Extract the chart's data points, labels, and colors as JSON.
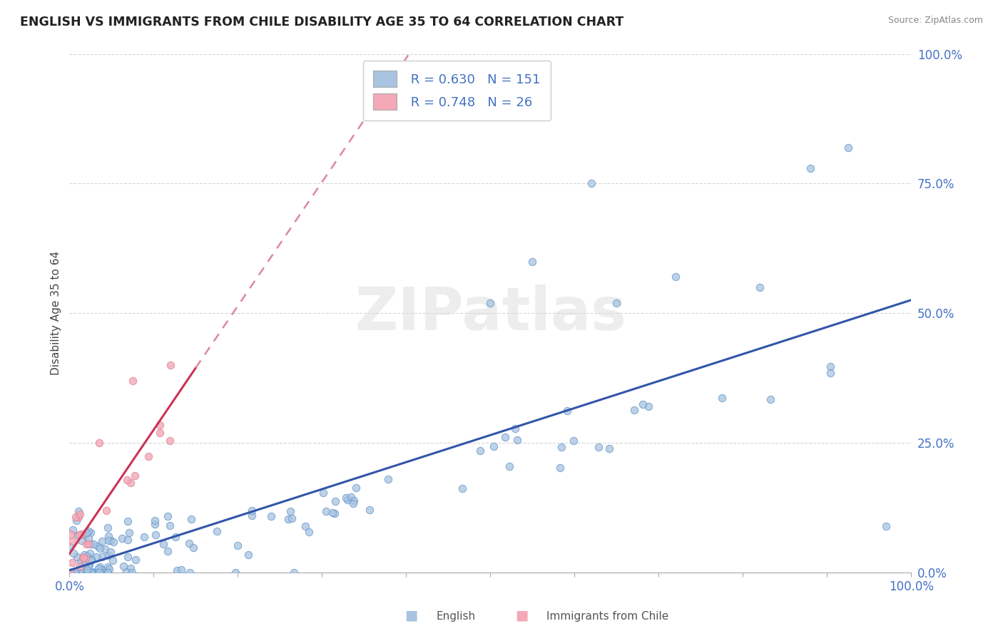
{
  "title": "ENGLISH VS IMMIGRANTS FROM CHILE DISABILITY AGE 35 TO 64 CORRELATION CHART",
  "source": "Source: ZipAtlas.com",
  "ylabel": "Disability Age 35 to 64",
  "ytick_labels": [
    "0.0%",
    "25.0%",
    "50.0%",
    "75.0%",
    "100.0%"
  ],
  "ytick_values": [
    0.0,
    0.25,
    0.5,
    0.75,
    1.0
  ],
  "xlim": [
    0.0,
    1.0
  ],
  "ylim": [
    0.0,
    1.0
  ],
  "english_R": 0.63,
  "english_N": 151,
  "chile_R": 0.748,
  "chile_N": 26,
  "english_color": "#a8c4e0",
  "english_edge_color": "#6699cc",
  "chile_color": "#f4a8b8",
  "chile_edge_color": "#dd8899",
  "english_line_color": "#3355aa",
  "chile_line_color": "#cc3355",
  "chile_dash_color": "#dd8899",
  "background_color": "#ffffff",
  "watermark_color": "#dddddd",
  "title_color": "#222222",
  "source_color": "#888888",
  "tick_color": "#4472c4",
  "ylabel_color": "#444444",
  "grid_color": "#cccccc",
  "legend_edge_color": "#cccccc",
  "bottom_legend_english": "English",
  "bottom_legend_chile": "Immigrants from Chile"
}
